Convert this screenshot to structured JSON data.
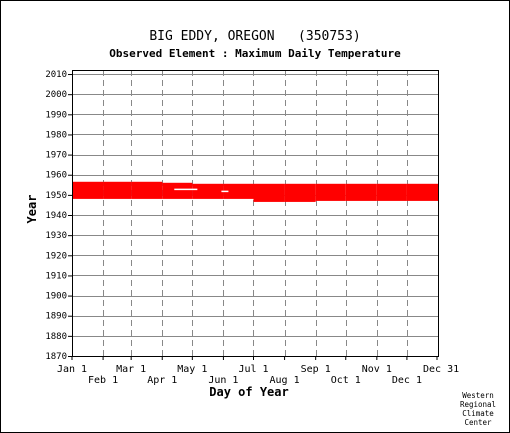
{
  "title": "BIG EDDY, OREGON   (350753)",
  "subtitle": "Observed Element : Maximum Daily Temperature",
  "credit": [
    "Western",
    "Regional",
    "Climate",
    "Center"
  ],
  "colors": {
    "data": "#ff0000",
    "grid": "#888888",
    "text": "#000000"
  },
  "chart_data": {
    "type": "heatmap",
    "title": "BIG EDDY, OREGON   (350753)",
    "subtitle": "Observed Element : Maximum Daily Temperature",
    "xlabel": "Day of Year",
    "ylabel": "Year",
    "xlim": [
      1,
      366
    ],
    "ylim": [
      1870,
      2012
    ],
    "x_ticks_top_row": [
      {
        "label": "Jan 1",
        "day": 1
      },
      {
        "label": "Mar 1",
        "day": 60
      },
      {
        "label": "May 1",
        "day": 121
      },
      {
        "label": "Jul 1",
        "day": 182
      },
      {
        "label": "Sep 1",
        "day": 244
      },
      {
        "label": "Nov 1",
        "day": 305
      },
      {
        "label": "Dec 31",
        "day": 365
      }
    ],
    "x_ticks_bottom_row": [
      {
        "label": "Feb 1",
        "day": 32
      },
      {
        "label": "Apr 1",
        "day": 91
      },
      {
        "label": "Jun 1",
        "day": 152
      },
      {
        "label": "Aug 1",
        "day": 213
      },
      {
        "label": "Oct 1",
        "day": 274
      },
      {
        "label": "Dec 1",
        "day": 335
      }
    ],
    "y_ticks": [
      1870,
      1880,
      1890,
      1900,
      1910,
      1920,
      1930,
      1940,
      1950,
      1960,
      1970,
      1980,
      1990,
      2000,
      2010
    ],
    "grid": true,
    "coverage_segments": [
      {
        "day_start": 1,
        "day_end": 32,
        "year_start": 1948.0,
        "year_end": 1956.5
      },
      {
        "day_start": 32,
        "day_end": 60,
        "year_start": 1948.0,
        "year_end": 1956.5
      },
      {
        "day_start": 60,
        "day_end": 91,
        "year_start": 1948.0,
        "year_end": 1956.5
      },
      {
        "day_start": 91,
        "day_end": 121,
        "year_start": 1948.0,
        "year_end": 1956.0
      },
      {
        "day_start": 121,
        "day_end": 152,
        "year_start": 1948.0,
        "year_end": 1955.5
      },
      {
        "day_start": 152,
        "day_end": 182,
        "year_start": 1948.0,
        "year_end": 1955.5
      },
      {
        "day_start": 182,
        "day_end": 213,
        "year_start": 1946.5,
        "year_end": 1955.5
      },
      {
        "day_start": 213,
        "day_end": 244,
        "year_start": 1946.5,
        "year_end": 1955.5
      },
      {
        "day_start": 244,
        "day_end": 274,
        "year_start": 1947.0,
        "year_end": 1955.5
      },
      {
        "day_start": 274,
        "day_end": 305,
        "year_start": 1947.0,
        "year_end": 1955.5
      },
      {
        "day_start": 305,
        "day_end": 335,
        "year_start": 1947.0,
        "year_end": 1955.5
      },
      {
        "day_start": 335,
        "day_end": 366,
        "year_start": 1947.0,
        "year_end": 1955.5
      }
    ],
    "missing_gaps": [
      {
        "day_start": 103,
        "day_end": 126,
        "year_start": 1952.6,
        "year_end": 1953.1
      },
      {
        "day_start": 150,
        "day_end": 157,
        "year_start": 1951.6,
        "year_end": 1952.1
      }
    ]
  }
}
